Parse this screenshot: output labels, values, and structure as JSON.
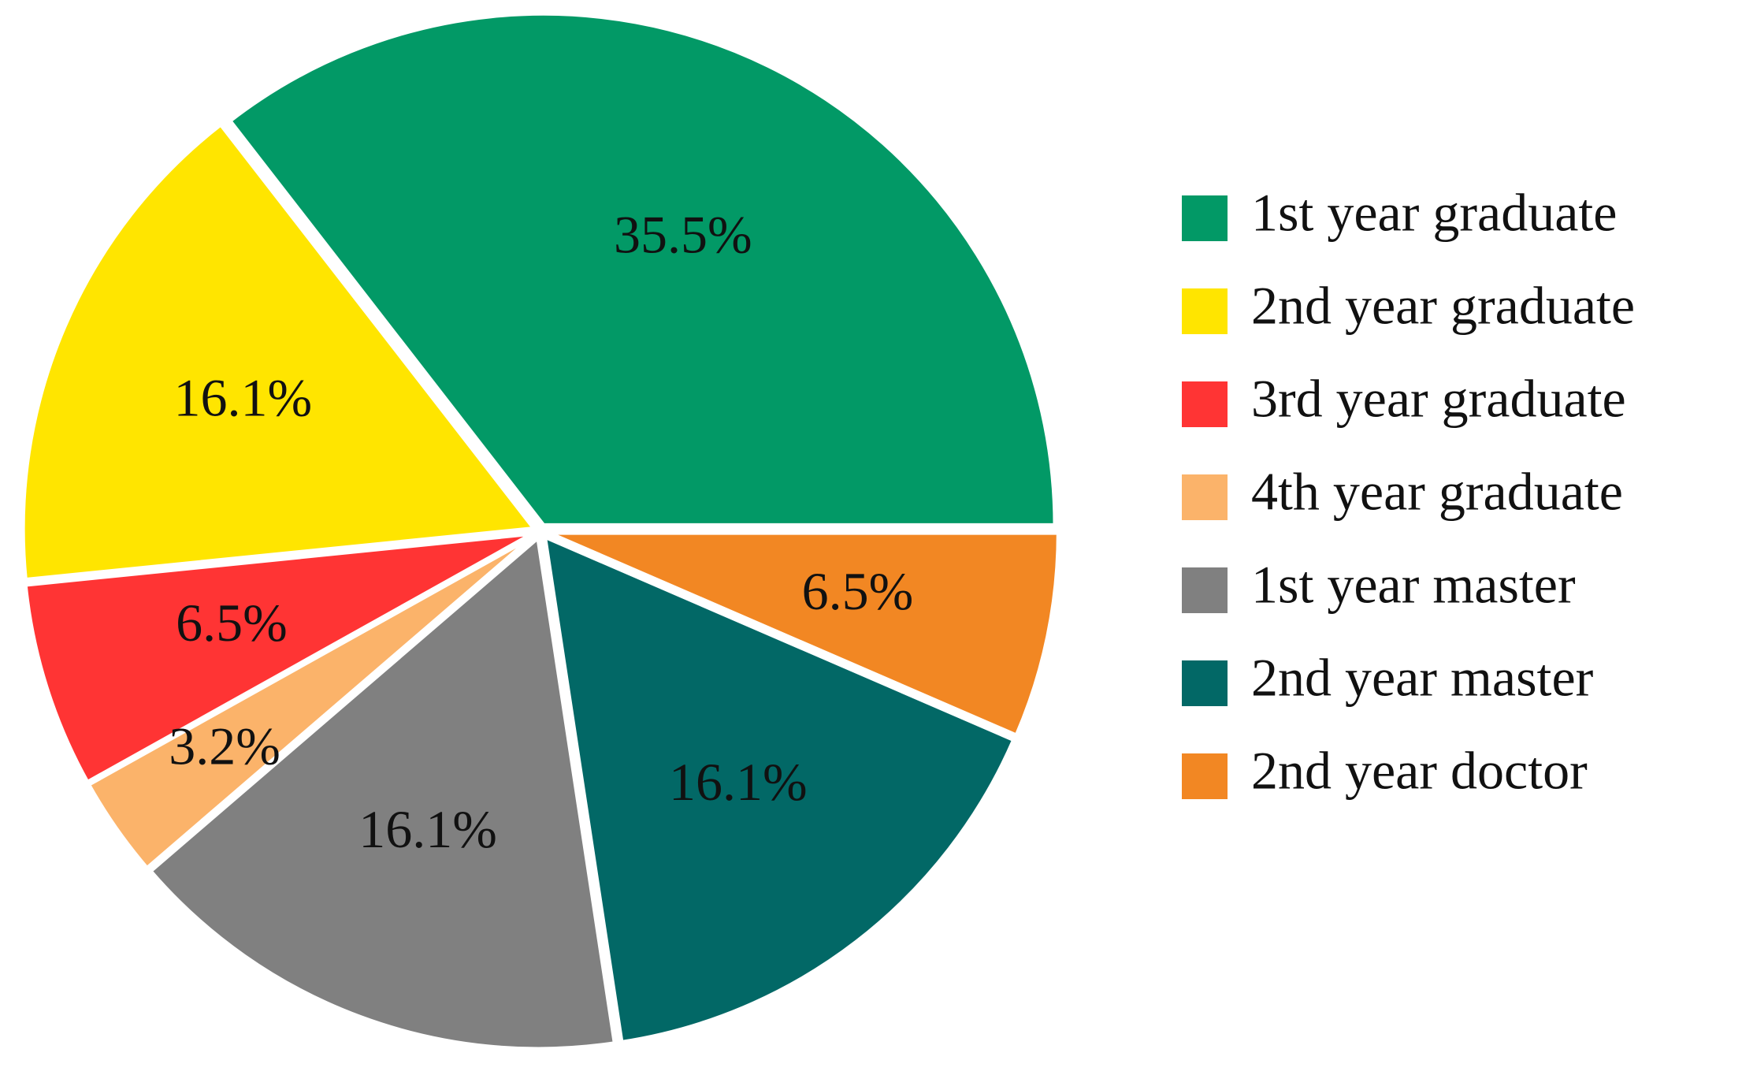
{
  "chart_data": {
    "type": "pie",
    "categories": [
      "1st year graduate",
      "2nd year graduate",
      "3rd year graduate",
      "4th year graduate",
      "1st year master",
      "2nd year master",
      "2nd year doctor"
    ],
    "values": [
      35.5,
      16.1,
      6.5,
      3.2,
      16.1,
      16.1,
      6.5
    ],
    "labels": [
      "35.5%",
      "16.1%",
      "6.5%",
      "3.2%",
      "16.1%",
      "16.1%",
      "6.5%"
    ],
    "colors": [
      "#029966",
      "#FFE500",
      "#FF3434",
      "#FBB36A",
      "#808080",
      "#026866",
      "#F28723"
    ],
    "start_angle": "3 o'clock",
    "direction": "counterclockwise",
    "exploded": true,
    "legend_position": "right"
  }
}
